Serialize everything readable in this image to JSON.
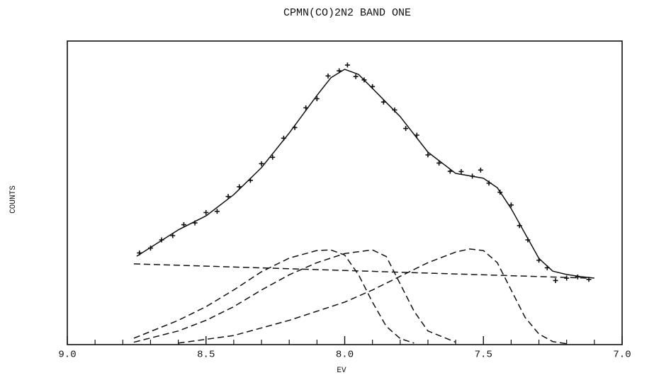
{
  "chart_data": {
    "type": "line",
    "title": "CPMN(CO)2N2 BAND ONE",
    "x_label": "EV",
    "y_label": "COUNTS",
    "xlim": [
      9.0,
      7.0
    ],
    "ylim": [
      0,
      100
    ],
    "xticks": [
      {
        "value": 9.0,
        "label": "9.0"
      },
      {
        "value": 8.5,
        "label": "8.5"
      },
      {
        "value": 8.0,
        "label": "8.0"
      },
      {
        "value": 7.5,
        "label": "7.5"
      },
      {
        "value": 7.0,
        "label": "7.0"
      }
    ],
    "xminorticks": [
      8.9,
      8.8,
      8.7,
      8.6,
      8.4,
      8.3,
      8.2,
      8.1,
      7.9,
      7.8,
      7.7,
      7.6,
      7.4,
      7.3,
      7.2,
      7.1
    ],
    "series": [
      {
        "color": "#111111",
        "style": "solid",
        "x": [
          8.75,
          8.6,
          8.5,
          8.4,
          8.3,
          8.2,
          8.1,
          8.05,
          8.0,
          7.95,
          7.9,
          7.8,
          7.7,
          7.6,
          7.5,
          7.45,
          7.4,
          7.35,
          7.3,
          7.25,
          7.2,
          7.15,
          7.1
        ],
        "values": [
          29.1,
          37.8,
          42.4,
          49.4,
          58.3,
          69.7,
          82.1,
          87.9,
          90.7,
          89.0,
          84.4,
          75.1,
          63.4,
          56.4,
          54.8,
          51.7,
          44.8,
          36.6,
          28.4,
          24.2,
          23.1,
          22.4,
          21.9
        ]
      },
      {
        "color": "#111111",
        "style": "dashed",
        "x": [
          8.76,
          7.12
        ],
        "values": [
          26.6,
          21.9
        ]
      },
      {
        "color": "#111111",
        "style": "dashed",
        "x": [
          8.76,
          8.6,
          8.5,
          8.4,
          8.3,
          8.2,
          8.1,
          8.05,
          8.0,
          7.95,
          7.9,
          7.85,
          7.8,
          7.75
        ],
        "values": [
          2.1,
          8,
          12.5,
          18,
          24,
          28.5,
          31,
          31.2,
          29.5,
          23,
          14,
          6,
          2,
          0.5
        ]
      },
      {
        "color": "#111111",
        "style": "dashed",
        "x": [
          8.76,
          8.6,
          8.5,
          8.4,
          8.3,
          8.2,
          8.1,
          8.0,
          7.9,
          7.85,
          7.8,
          7.75,
          7.7,
          7.6
        ],
        "values": [
          0.8,
          4.5,
          8,
          12.5,
          18,
          23,
          27,
          30,
          31.2,
          29,
          20,
          11,
          4.5,
          0.8
        ]
      },
      {
        "color": "#111111",
        "style": "dashed",
        "x": [
          8.6,
          8.4,
          8.2,
          8.0,
          7.9,
          7.8,
          7.7,
          7.6,
          7.55,
          7.5,
          7.45,
          7.4,
          7.35,
          7.3,
          7.25,
          7.2
        ],
        "values": [
          0.5,
          3,
          8,
          14,
          18,
          22.5,
          27,
          30.5,
          31.5,
          31,
          27,
          18,
          9,
          3.5,
          1,
          0.3
        ]
      },
      {
        "color": "#111111",
        "style": "markers",
        "x": [
          8.74,
          8.7,
          8.66,
          8.62,
          8.58,
          8.54,
          8.5,
          8.46,
          8.42,
          8.38,
          8.34,
          8.3,
          8.26,
          8.22,
          8.18,
          8.14,
          8.1,
          8.06,
          8.02,
          7.99,
          7.96,
          7.93,
          7.9,
          7.86,
          7.82,
          7.78,
          7.74,
          7.7,
          7.66,
          7.62,
          7.58,
          7.54,
          7.51,
          7.48,
          7.44,
          7.4,
          7.37,
          7.34,
          7.3,
          7.27,
          7.24,
          7.2,
          7.16,
          7.12
        ],
        "values": [
          30.2,
          31.8,
          34.5,
          35.9,
          39.5,
          40.1,
          43.5,
          43.9,
          48.8,
          52.0,
          54.1,
          59.6,
          61.7,
          68.0,
          71.5,
          78.0,
          81.0,
          88.5,
          90.2,
          92.1,
          88.3,
          87.2,
          85.0,
          79.9,
          77.3,
          71.2,
          69.0,
          62.5,
          59.8,
          57.1,
          57.0,
          55.5,
          57.5,
          53.2,
          50.2,
          46.0,
          39.2,
          34.5,
          27.8,
          25.3,
          21.1,
          21.9,
          22.3,
          21.5
        ]
      }
    ]
  }
}
